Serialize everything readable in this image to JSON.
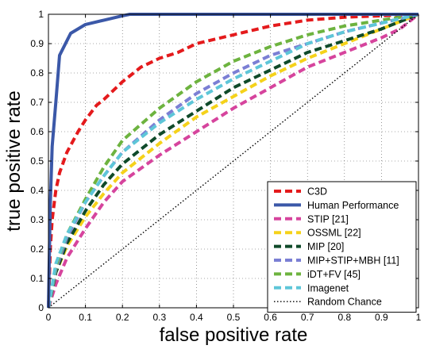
{
  "chart_data": {
    "type": "line",
    "xlabel": "false positive rate",
    "ylabel": "true positive rate",
    "xlim": [
      0,
      1
    ],
    "ylim": [
      0,
      1
    ],
    "xticks": [
      "0",
      "0.1",
      "0.2",
      "0.3",
      "0.4",
      "0.5",
      "0.6",
      "0.7",
      "0.8",
      "0.9",
      "1"
    ],
    "yticks": [
      "0",
      "0.1",
      "0.2",
      "0.3",
      "0.4",
      "0.5",
      "0.6",
      "0.7",
      "0.8",
      "0.9",
      "1"
    ],
    "grid": true,
    "legend_position": "bottom-right",
    "series": [
      {
        "name": "C3D",
        "color": "#e41a1c",
        "style": "dashed",
        "x": [
          0,
          0.005,
          0.01,
          0.02,
          0.03,
          0.05,
          0.08,
          0.1,
          0.13,
          0.15,
          0.2,
          0.25,
          0.3,
          0.35,
          0.4,
          0.5,
          0.6,
          0.7,
          0.8,
          0.9,
          1.0
        ],
        "y": [
          0,
          0.2,
          0.3,
          0.4,
          0.46,
          0.53,
          0.6,
          0.64,
          0.69,
          0.71,
          0.77,
          0.82,
          0.85,
          0.87,
          0.9,
          0.93,
          0.96,
          0.98,
          0.99,
          0.995,
          1.0
        ]
      },
      {
        "name": "Human Performance",
        "color": "#3b58a8",
        "style": "solid",
        "x": [
          0,
          0.005,
          0.01,
          0.02,
          0.03,
          0.06,
          0.1,
          0.15,
          0.2,
          0.22,
          0.3,
          1.0
        ],
        "y": [
          0,
          0.35,
          0.55,
          0.7,
          0.86,
          0.935,
          0.965,
          0.98,
          0.995,
          1.0,
          1.0,
          1.0
        ]
      },
      {
        "name": "STIP [21]",
        "color": "#d6449d",
        "style": "dashed",
        "x": [
          0,
          0.02,
          0.05,
          0.1,
          0.15,
          0.2,
          0.3,
          0.4,
          0.5,
          0.6,
          0.7,
          0.8,
          0.9,
          0.95,
          1.0
        ],
        "y": [
          0,
          0.08,
          0.17,
          0.27,
          0.36,
          0.43,
          0.52,
          0.6,
          0.68,
          0.75,
          0.82,
          0.87,
          0.92,
          0.95,
          1.0
        ]
      },
      {
        "name": "OSSML [22]",
        "color": "#f5d21a",
        "style": "dashed",
        "x": [
          0,
          0.02,
          0.05,
          0.1,
          0.15,
          0.2,
          0.3,
          0.4,
          0.5,
          0.6,
          0.7,
          0.8,
          0.9,
          1.0
        ],
        "y": [
          0,
          0.12,
          0.21,
          0.31,
          0.39,
          0.46,
          0.56,
          0.65,
          0.72,
          0.79,
          0.85,
          0.9,
          0.95,
          1.0
        ]
      },
      {
        "name": "MIP [20]",
        "color": "#0f4a2a",
        "style": "dashed",
        "x": [
          0,
          0.02,
          0.05,
          0.1,
          0.15,
          0.2,
          0.3,
          0.4,
          0.5,
          0.6,
          0.7,
          0.8,
          0.9,
          1.0
        ],
        "y": [
          0,
          0.12,
          0.22,
          0.33,
          0.42,
          0.49,
          0.59,
          0.67,
          0.75,
          0.81,
          0.87,
          0.91,
          0.95,
          1.0
        ]
      },
      {
        "name": "MIP+STIP+MBH [11]",
        "color": "#7b7fd4",
        "style": "dashed",
        "x": [
          0,
          0.02,
          0.05,
          0.1,
          0.15,
          0.2,
          0.3,
          0.4,
          0.5,
          0.6,
          0.7,
          0.8,
          0.9,
          1.0
        ],
        "y": [
          0,
          0.13,
          0.24,
          0.36,
          0.45,
          0.53,
          0.64,
          0.73,
          0.8,
          0.86,
          0.9,
          0.94,
          0.97,
          1.0
        ]
      },
      {
        "name": "iDT+FV [45]",
        "color": "#6db33f",
        "style": "dashed",
        "x": [
          0,
          0.02,
          0.05,
          0.1,
          0.15,
          0.2,
          0.3,
          0.4,
          0.5,
          0.6,
          0.7,
          0.8,
          0.9,
          1.0
        ],
        "y": [
          0,
          0.14,
          0.25,
          0.37,
          0.48,
          0.57,
          0.68,
          0.77,
          0.84,
          0.89,
          0.93,
          0.96,
          0.98,
          1.0
        ]
      },
      {
        "name": "Imagenet",
        "color": "#5ec6d8",
        "style": "dashed",
        "x": [
          0,
          0.02,
          0.05,
          0.1,
          0.15,
          0.2,
          0.3,
          0.4,
          0.5,
          0.6,
          0.7,
          0.8,
          0.9,
          1.0
        ],
        "y": [
          0,
          0.15,
          0.25,
          0.36,
          0.45,
          0.53,
          0.63,
          0.71,
          0.78,
          0.84,
          0.9,
          0.94,
          0.97,
          1.0
        ]
      },
      {
        "name": "Random Chance",
        "color": "#000000",
        "style": "dotted",
        "x": [
          0,
          1
        ],
        "y": [
          0,
          1
        ]
      }
    ]
  }
}
